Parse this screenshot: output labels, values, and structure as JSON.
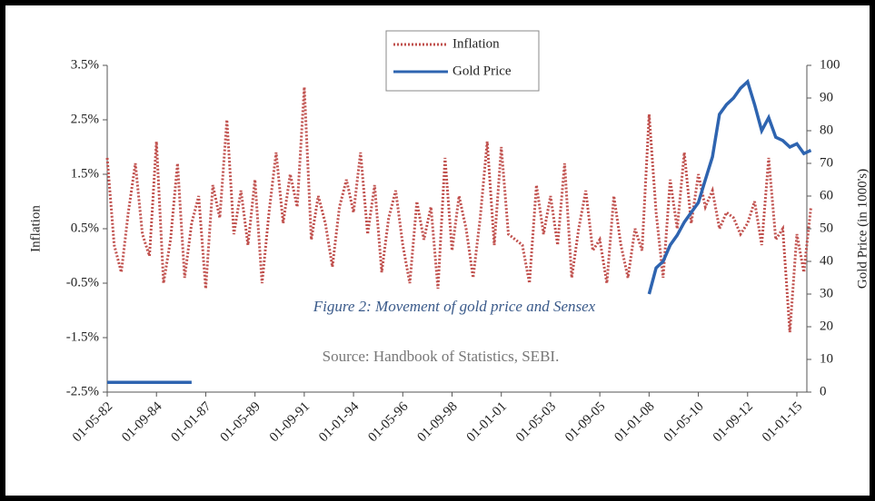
{
  "chart_data": {
    "type": "line",
    "categories": [
      "01-05-82",
      null,
      null,
      null,
      null,
      null,
      null,
      "01-09-84",
      null,
      null,
      null,
      null,
      null,
      null,
      "01-01-87",
      null,
      null,
      null,
      null,
      null,
      null,
      "01-05-89",
      null,
      null,
      null,
      null,
      null,
      null,
      "01-09-91",
      null,
      null,
      null,
      null,
      null,
      null,
      "01-01-94",
      null,
      null,
      null,
      null,
      null,
      null,
      "01-05-96",
      null,
      null,
      null,
      null,
      null,
      null,
      "01-09-98",
      null,
      null,
      null,
      null,
      null,
      null,
      "01-01-01",
      null,
      null,
      null,
      null,
      null,
      null,
      "01-05-03",
      null,
      null,
      null,
      null,
      null,
      null,
      "01-09-05",
      null,
      null,
      null,
      null,
      null,
      null,
      "01-01-08",
      null,
      null,
      null,
      null,
      null,
      null,
      "01-05-10",
      null,
      null,
      null,
      null,
      null,
      null,
      "01-09-12",
      null,
      null,
      null,
      null,
      null,
      null,
      "01-01-15",
      null,
      null
    ],
    "series": [
      {
        "name": "Inflation",
        "color": "#c0504d",
        "dash": true,
        "axis": "y",
        "values": [
          1.8,
          0.2,
          -0.3,
          0.8,
          1.7,
          0.4,
          0.0,
          2.1,
          -0.5,
          0.3,
          1.7,
          -0.4,
          0.6,
          1.1,
          -0.6,
          1.3,
          0.7,
          2.5,
          0.4,
          1.2,
          0.2,
          1.4,
          -0.5,
          0.8,
          1.9,
          0.6,
          1.5,
          0.9,
          3.1,
          0.3,
          1.1,
          0.6,
          -0.2,
          0.9,
          1.4,
          0.8,
          1.9,
          0.4,
          1.3,
          -0.3,
          0.7,
          1.2,
          0.2,
          -0.5,
          1.0,
          0.3,
          0.9,
          -0.6,
          1.8,
          0.1,
          1.1,
          0.5,
          -0.4,
          0.7,
          2.1,
          0.2,
          2.0,
          0.4,
          0.3,
          0.2,
          -0.5,
          1.3,
          0.4,
          1.1,
          0.2,
          1.7,
          -0.4,
          0.5,
          1.2,
          0.1,
          0.3,
          -0.5,
          1.1,
          0.2,
          -0.4,
          0.5,
          0.1,
          2.6,
          0.8,
          -0.4,
          1.4,
          0.5,
          1.9,
          0.6,
          1.5,
          0.9,
          1.2,
          0.5,
          0.8,
          0.7,
          0.4,
          0.6,
          1.0,
          0.2,
          1.8,
          0.3,
          0.5,
          -1.4,
          0.4,
          -0.3,
          0.9
        ]
      },
      {
        "name": "Gold Price",
        "color": "#2e64b0",
        "dash": false,
        "axis": "y2",
        "values": [
          3,
          3,
          3,
          3,
          3,
          3,
          3,
          3,
          3,
          3,
          3,
          3,
          3,
          null,
          null,
          null,
          null,
          null,
          null,
          null,
          null,
          null,
          null,
          null,
          null,
          null,
          null,
          null,
          null,
          null,
          null,
          null,
          null,
          null,
          null,
          null,
          null,
          null,
          null,
          null,
          null,
          null,
          null,
          null,
          null,
          null,
          null,
          null,
          null,
          null,
          null,
          null,
          null,
          null,
          null,
          null,
          null,
          null,
          null,
          null,
          null,
          null,
          null,
          null,
          null,
          null,
          null,
          null,
          null,
          null,
          null,
          null,
          null,
          null,
          null,
          null,
          null,
          30,
          38,
          40,
          45,
          48,
          52,
          55,
          58,
          65,
          72,
          85,
          88,
          90,
          93,
          95,
          88,
          80,
          84,
          78,
          77,
          75,
          76,
          73,
          74
        ]
      }
    ],
    "ylabel": "Inflation",
    "y2label": "Gold Price (in 1000's)",
    "ylim": [
      -2.5,
      3.5
    ],
    "yticks": [
      {
        "value": 3.5,
        "label": "3.5%"
      },
      {
        "value": 2.5,
        "label": "2.5%"
      },
      {
        "value": 1.5,
        "label": "1.5%"
      },
      {
        "value": 0.5,
        "label": "0.5%"
      },
      {
        "value": -0.5,
        "label": "-0.5%"
      },
      {
        "value": -1.5,
        "label": "-1.5%"
      },
      {
        "value": -2.5,
        "label": "-2.5%"
      }
    ],
    "y2lim": [
      0,
      100
    ],
    "y2ticks": [
      0,
      10,
      20,
      30,
      40,
      50,
      60,
      70,
      80,
      90,
      100
    ],
    "annotations": [
      "Figure 2: Movement of gold price and Sensex",
      "Source: Handbook of Statistics, SEBI."
    ]
  }
}
